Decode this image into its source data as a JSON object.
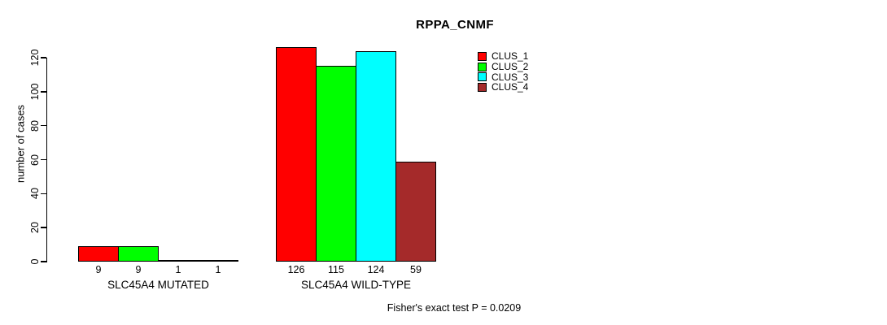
{
  "chart_data": {
    "type": "bar",
    "title": "RPPA_CNMF",
    "ylabel": "number of cases",
    "xlabel": "",
    "ylim": [
      0,
      120
    ],
    "yticks": [
      0,
      20,
      40,
      60,
      80,
      100,
      120
    ],
    "grid": false,
    "legend_position": "top-right",
    "categories": [
      "SLC45A4 MUTATED",
      "SLC45A4 WILD-TYPE"
    ],
    "groups": [
      {
        "label": "SLC45A4 MUTATED",
        "values": [
          9,
          9,
          1,
          1
        ]
      },
      {
        "label": "SLC45A4 WILD-TYPE",
        "values": [
          126,
          115,
          124,
          59
        ]
      }
    ],
    "series": [
      {
        "name": "CLUS_1",
        "color": "#FF0000",
        "values": [
          9,
          126
        ]
      },
      {
        "name": "CLUS_2",
        "color": "#00FF00",
        "values": [
          9,
          115
        ]
      },
      {
        "name": "CLUS_3",
        "color": "#00FFFF",
        "values": [
          1,
          124
        ]
      },
      {
        "name": "CLUS_4",
        "color": "#A52A2A",
        "values": [
          1,
          59
        ]
      }
    ],
    "bar_value_labels": [
      9,
      9,
      1,
      1,
      126,
      115,
      124,
      59
    ],
    "annotation": "Fisher's exact test P = 0.0209"
  },
  "colors": {
    "axis": "#000000",
    "background": "#FFFFFF",
    "clus_1": "#FF0000",
    "clus_2": "#00FF00",
    "clus_3": "#00FFFF",
    "clus_4": "#A52A2A"
  }
}
